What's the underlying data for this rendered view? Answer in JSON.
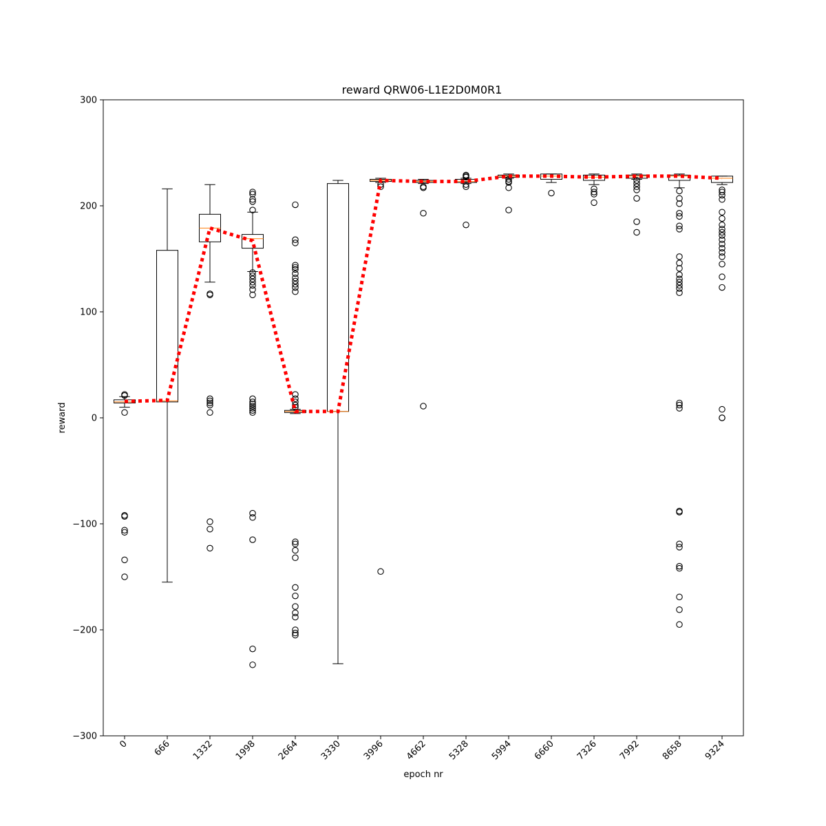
{
  "chart_data": {
    "type": "box",
    "title": "reward QRW06-L1E2D0M0R1",
    "xlabel": "epoch nr",
    "ylabel": "reward",
    "ylim": [
      -300,
      300
    ],
    "yticks": [
      -300,
      -200,
      -100,
      0,
      100,
      200,
      300
    ],
    "categories": [
      "0",
      "666",
      "1332",
      "1998",
      "2664",
      "3330",
      "3996",
      "4662",
      "5328",
      "5994",
      "6660",
      "7326",
      "7992",
      "8658",
      "9324"
    ],
    "boxes": [
      {
        "q1": 14,
        "median": 15,
        "q3": 17,
        "whislo": 10,
        "whishi": 20,
        "fliers": [
          22,
          21,
          5,
          -92,
          -93,
          -106,
          -108,
          -134,
          -150
        ]
      },
      {
        "q1": 15,
        "median": 16,
        "q3": 158,
        "whislo": -155,
        "whishi": 216,
        "fliers": []
      },
      {
        "q1": 166,
        "median": 179,
        "q3": 192,
        "whislo": 128,
        "whishi": 220,
        "fliers": [
          117,
          116,
          18,
          16,
          14,
          12,
          5,
          -98,
          -105,
          -123
        ]
      },
      {
        "q1": 160,
        "median": 169,
        "q3": 173,
        "whislo": 138,
        "whishi": 194,
        "fliers": [
          213,
          211,
          206,
          204,
          196,
          137,
          134,
          131,
          128,
          125,
          121,
          116,
          18,
          15,
          13,
          11,
          9,
          7,
          5,
          -90,
          -94,
          -115,
          -218,
          -233
        ]
      },
      {
        "q1": 5,
        "median": 6,
        "q3": 7,
        "whislo": 4,
        "whishi": 8,
        "fliers": [
          201,
          168,
          165,
          144,
          142,
          140,
          136,
          132,
          129,
          126,
          123,
          119,
          22,
          18,
          15,
          12,
          10,
          -117,
          -119,
          -125,
          -132,
          -160,
          -168,
          -178,
          -184,
          -188,
          -200,
          -203,
          -205
        ]
      },
      {
        "q1": 6,
        "median": 6,
        "q3": 221,
        "whislo": -232,
        "whishi": 224,
        "fliers": []
      },
      {
        "q1": 223,
        "median": 224,
        "q3": 225,
        "whislo": 222,
        "whishi": 226,
        "fliers": [
          220,
          218,
          -145
        ]
      },
      {
        "q1": 222,
        "median": 223,
        "q3": 224,
        "whislo": 221,
        "whishi": 225,
        "fliers": [
          218,
          217,
          193,
          11
        ]
      },
      {
        "q1": 222,
        "median": 223,
        "q3": 225,
        "whislo": 221,
        "whishi": 226,
        "fliers": [
          229,
          228,
          227,
          220,
          218,
          182
        ]
      },
      {
        "q1": 227,
        "median": 228,
        "q3": 229,
        "whislo": 226,
        "whishi": 230,
        "fliers": [
          225,
          223,
          222,
          217,
          196
        ]
      },
      {
        "q1": 225,
        "median": 228,
        "q3": 230,
        "whislo": 222,
        "whishi": 230,
        "fliers": [
          212
        ]
      },
      {
        "q1": 224,
        "median": 227,
        "q3": 229,
        "whislo": 220,
        "whishi": 230,
        "fliers": [
          216,
          213,
          211,
          203
        ]
      },
      {
        "q1": 226,
        "median": 228,
        "q3": 229,
        "whislo": 225,
        "whishi": 230,
        "fliers": [
          224,
          221,
          218,
          215,
          207,
          185,
          175
        ]
      },
      {
        "q1": 224,
        "median": 228,
        "q3": 229,
        "whislo": 217,
        "whishi": 230,
        "fliers": [
          214,
          207,
          202,
          193,
          190,
          181,
          178,
          152,
          146,
          141,
          135,
          131,
          128,
          125,
          122,
          118,
          14,
          12,
          9,
          -88,
          -89,
          -119,
          -122,
          -140,
          -142,
          -169,
          -181,
          -195
        ]
      },
      {
        "q1": 222,
        "median": 226,
        "q3": 228,
        "whislo": 220,
        "whishi": 228,
        "fliers": [
          215,
          213,
          210,
          206,
          194,
          188,
          182,
          178,
          175,
          172,
          168,
          164,
          160,
          156,
          152,
          145,
          133,
          123,
          8,
          0,
          0
        ]
      }
    ],
    "series": [
      {
        "values": [
          15.5,
          16.5,
          179,
          167,
          6,
          6,
          224,
          223,
          223,
          228,
          228,
          227,
          228,
          228,
          226
        ],
        "color": "#ff0000",
        "style": "dotted"
      }
    ],
    "colors": {
      "box": "#000000",
      "median": "#ff7f0e",
      "mean_line": "#ff0000"
    }
  }
}
